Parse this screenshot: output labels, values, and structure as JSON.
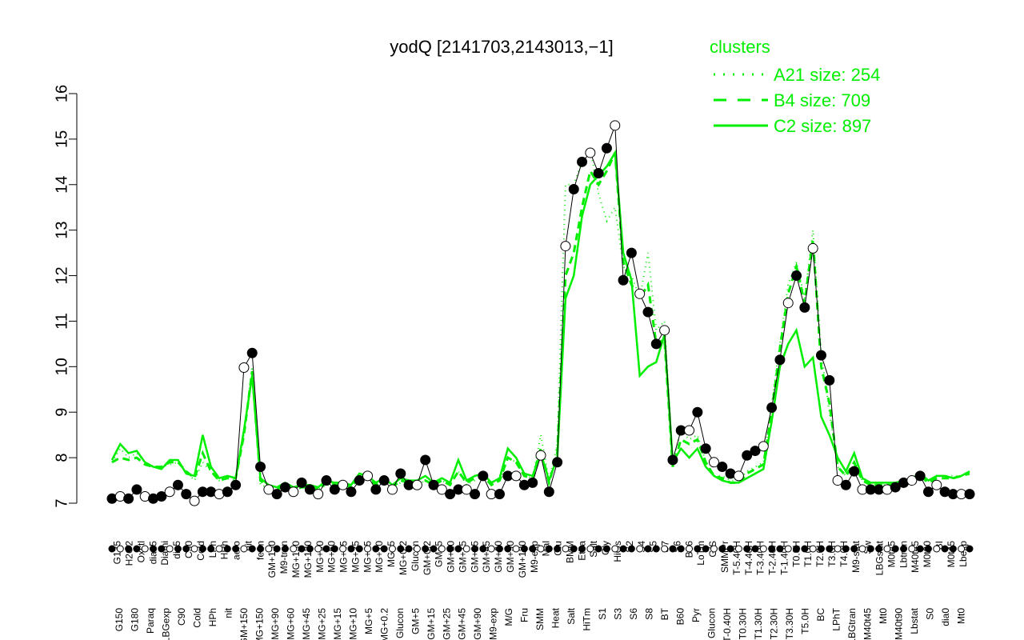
{
  "chart_data": {
    "type": "line",
    "title": "yodQ [2141703,2143013,−1]",
    "xlabel": "",
    "ylabel": "",
    "ylim": [
      7,
      16
    ],
    "yticks": [
      "7",
      "8",
      "9",
      "10",
      "11",
      "12",
      "13",
      "14",
      "15",
      "16"
    ],
    "categories": [
      "G150",
      "G135",
      "G180",
      "H2O2",
      "Paraq",
      "Oxctl",
      "LBGexp",
      "dia15",
      "Diami",
      "dia5",
      "C90",
      "C30",
      "Cold",
      "LPh",
      "HPh",
      "aero",
      "nit",
      "ferm",
      "GM+150",
      "M9-tran",
      "MG+150",
      "MG+120",
      "MG+60",
      "MG+90",
      "MG+45",
      "MG+25",
      "MG+15",
      "MG+10",
      "MG+5",
      "MG+0.2",
      "Glucon",
      "GM+0.2",
      "GM+5",
      "GM+10",
      "GM+15",
      "GM+25",
      "GM+45",
      "GM+60",
      "GM+90",
      "GM+120",
      "M9-exp",
      "M/G",
      "Mal",
      "Fru",
      "Glu",
      "SMM",
      "BMM",
      "Heat",
      "Etha",
      "Salt",
      "Gly",
      "HiTm",
      "HiOs",
      "S1",
      "S2",
      "S3",
      "S4",
      "S5",
      "S6a",
      "S7",
      "S8",
      "S6b",
      "BT",
      "B36",
      "B60",
      "LoTm",
      "Pyr",
      "G/S",
      "Glucon2",
      "SMMPr",
      "T-5.40H",
      "T-4.40H",
      "T-3.40H",
      "T-2.40H",
      "T-1.40H",
      "T-0.40H",
      "T0.0H",
      "T0.30H",
      "T1.0H",
      "T1.30H",
      "T2.0H",
      "T2.30H",
      "T3.0H",
      "T3.30H",
      "T4.0H",
      "T5.0H",
      "M9-stat",
      "BC",
      "Sw",
      "LPhT",
      "LBGstat",
      "LBGtran",
      "M0t45",
      "M40t45",
      "Lbtran",
      "Mt0",
      "M0t90",
      "M40t90",
      "Lbstat",
      "BI",
      "S0",
      "M0t45b",
      "dia0",
      "Mt0b",
      "Lbexp"
    ],
    "x_tick_labels_upper": [
      "G135",
      "H2O2",
      "Oxctl",
      "dia15",
      "Diami",
      "dia5",
      "C30",
      "Cold",
      "LPh",
      "HPh",
      "aero",
      "nit",
      "ferm",
      "GM+150",
      "M9-tran",
      "MG+150",
      "MG+120",
      "MG+90",
      "MG+60",
      "MG+45",
      "MG+25",
      "MG+15",
      "MG+10",
      "MG+5",
      "MG+0.2",
      "Glucon",
      "GM+0.2",
      "GM+5",
      "GM+10",
      "GM+15",
      "GM+25",
      "GM+45",
      "GM+60",
      "GM+90",
      "GM+120",
      "M9-exp",
      "Mal",
      "Glu",
      "BMM",
      "Etha",
      "Salt",
      "Gly",
      "HiOs",
      "S2",
      "S4",
      "S5",
      "S7",
      "S6",
      "B36",
      "LoTm",
      "G/S",
      "SMMPr",
      "T-5.40H",
      "T-4.40H",
      "T-3.40H",
      "T-2.40H",
      "T-1.40H",
      "T0.0H",
      "T1.0H",
      "T2.0H",
      "T3.0H",
      "T4.0H",
      "M9-stat",
      "Sw",
      "LBGstat",
      "M0t45",
      "Lbtran",
      "M40t45",
      "M0t90",
      "BI",
      "M0t45",
      "Lbexp"
    ],
    "x_tick_labels_lower": [
      "G150",
      "G180",
      "Paraq",
      "LBGexp",
      "C90",
      "Cold",
      "HPh",
      "nit",
      "GM+150",
      "MG+150",
      "MG+90",
      "MG+60",
      "MG+45",
      "MG+25",
      "MG+15",
      "MG+10",
      "MG+5",
      "MG+0.2",
      "Glucon",
      "GM+5",
      "GM+15",
      "GM+25",
      "GM+45",
      "GM+90",
      "M9-exp",
      "M/G",
      "Fru",
      "SMM",
      "Heat",
      "Salt",
      "HiTm",
      "S1",
      "S3",
      "S6",
      "S8",
      "BT",
      "B60",
      "Pyr",
      "Glucon",
      "T-0.40H",
      "T0.30H",
      "T1.30H",
      "T2.30H",
      "T3.30H",
      "T5.0H",
      "BC",
      "LPhT",
      "LBGtran",
      "M40t45",
      "Mt0",
      "M40t90",
      "Lbstat",
      "S0",
      "dia0",
      "Mt0"
    ],
    "points": [
      7.1,
      7.15,
      7.1,
      7.3,
      7.15,
      7.1,
      7.15,
      7.25,
      7.4,
      7.2,
      7.05,
      7.25,
      7.25,
      7.2,
      7.25,
      7.4,
      9.98,
      10.3,
      7.8,
      7.3,
      7.2,
      7.35,
      7.25,
      7.45,
      7.3,
      7.2,
      7.5,
      7.3,
      7.4,
      7.25,
      7.5,
      7.6,
      7.3,
      7.5,
      7.3,
      7.65,
      7.4,
      7.4,
      7.95,
      7.4,
      7.3,
      7.2,
      7.3,
      7.3,
      7.2,
      7.6,
      7.2,
      7.2,
      7.6,
      7.6,
      7.4,
      7.45,
      8.05,
      7.25,
      7.9,
      12.65,
      13.9,
      14.5,
      14.7,
      14.25,
      14.8,
      15.3,
      11.9,
      12.5,
      11.6,
      11.2,
      10.5,
      10.8,
      7.95,
      8.6,
      8.6,
      9.0,
      8.2,
      7.9,
      7.8,
      7.65,
      7.6,
      8.05,
      8.15,
      8.25,
      9.1,
      10.15,
      11.4,
      12.0,
      11.3,
      12.6,
      10.25,
      9.7,
      7.5,
      7.4,
      7.7,
      7.3,
      7.3,
      7.3,
      7.3,
      7.35,
      7.45,
      7.5,
      7.6,
      7.25,
      7.4,
      7.25,
      7.2,
      7.2,
      7.2
    ],
    "series": [
      {
        "name": "A21 size: 254",
        "style": "dotted",
        "values": [
          7.9,
          8.2,
          8.0,
          8.1,
          7.9,
          7.8,
          7.8,
          7.85,
          7.9,
          7.7,
          7.5,
          7.9,
          7.7,
          7.5,
          7.55,
          7.5,
          8.5,
          10.0,
          7.4,
          7.35,
          7.3,
          7.35,
          7.3,
          7.35,
          7.3,
          7.3,
          7.4,
          7.4,
          7.35,
          7.35,
          7.6,
          7.6,
          7.4,
          7.5,
          7.35,
          7.45,
          7.4,
          7.4,
          7.5,
          7.4,
          7.5,
          7.4,
          7.7,
          7.4,
          7.5,
          7.6,
          7.4,
          7.5,
          8.0,
          7.9,
          7.6,
          7.55,
          8.5,
          7.5,
          8.3,
          14.0,
          14.0,
          14.5,
          14.8,
          13.8,
          13.2,
          13.5,
          12.2,
          12.0,
          11.5,
          12.5,
          10.8,
          11.0,
          7.9,
          8.6,
          8.4,
          8.5,
          7.9,
          7.6,
          7.6,
          7.5,
          7.5,
          7.7,
          7.8,
          7.9,
          9.2,
          10.5,
          11.8,
          12.3,
          11.5,
          13.0,
          10.3,
          9.0,
          7.8,
          7.6,
          7.8,
          7.5,
          7.4,
          7.4,
          7.4,
          7.4,
          7.45,
          7.5,
          7.6,
          7.5,
          7.6,
          7.6,
          7.6,
          7.6,
          7.7
        ]
      },
      {
        "name": "B4 size: 709",
        "style": "dashed",
        "values": [
          7.9,
          8.0,
          7.95,
          8.0,
          7.85,
          7.8,
          7.8,
          7.9,
          7.9,
          7.7,
          7.55,
          8.1,
          7.7,
          7.5,
          7.55,
          7.55,
          8.5,
          9.9,
          7.5,
          7.35,
          7.3,
          7.4,
          7.3,
          7.35,
          7.35,
          7.3,
          7.45,
          7.4,
          7.4,
          7.35,
          7.6,
          7.55,
          7.4,
          7.5,
          7.35,
          7.5,
          7.45,
          7.45,
          7.5,
          7.4,
          7.5,
          7.4,
          7.7,
          7.45,
          7.55,
          7.6,
          7.4,
          7.5,
          8.0,
          7.9,
          7.6,
          7.55,
          8.2,
          7.45,
          8.1,
          12.0,
          12.5,
          13.5,
          14.3,
          14.0,
          14.3,
          14.7,
          12.3,
          11.8,
          11.5,
          11.8,
          10.5,
          10.6,
          7.8,
          8.4,
          8.3,
          8.4,
          7.9,
          7.6,
          7.55,
          7.45,
          7.45,
          7.65,
          7.75,
          7.85,
          9.0,
          10.4,
          11.6,
          12.2,
          11.4,
          12.8,
          10.0,
          9.2,
          7.8,
          7.6,
          7.9,
          7.5,
          7.4,
          7.4,
          7.4,
          7.4,
          7.45,
          7.5,
          7.6,
          7.45,
          7.55,
          7.55,
          7.55,
          7.6,
          7.65
        ]
      },
      {
        "name": "C2 size: 897",
        "style": "solid",
        "values": [
          7.95,
          8.3,
          8.1,
          8.15,
          7.9,
          7.8,
          7.75,
          7.95,
          7.95,
          7.65,
          7.6,
          8.5,
          7.8,
          7.55,
          7.6,
          7.55,
          8.6,
          9.8,
          7.55,
          7.4,
          7.35,
          7.45,
          7.35,
          7.4,
          7.4,
          7.35,
          7.5,
          7.45,
          7.45,
          7.4,
          7.65,
          7.6,
          7.45,
          7.55,
          7.4,
          7.55,
          7.5,
          7.5,
          7.6,
          7.45,
          7.55,
          7.45,
          7.95,
          7.5,
          7.6,
          7.65,
          7.45,
          7.55,
          8.2,
          8.0,
          7.65,
          7.6,
          8.1,
          7.5,
          8.0,
          11.5,
          12.0,
          13.3,
          14.0,
          14.2,
          14.4,
          14.7,
          12.5,
          11.9,
          9.8,
          10.0,
          10.1,
          10.7,
          7.9,
          8.2,
          8.0,
          8.2,
          7.8,
          7.6,
          7.5,
          7.45,
          7.45,
          7.55,
          7.65,
          7.75,
          8.8,
          10.0,
          10.5,
          10.8,
          10.0,
          10.2,
          8.9,
          8.5,
          8.0,
          7.7,
          8.1,
          7.55,
          7.45,
          7.45,
          7.45,
          7.45,
          7.5,
          7.55,
          7.65,
          7.5,
          7.6,
          7.6,
          7.55,
          7.6,
          7.7
        ]
      }
    ],
    "legend_title": "clusters",
    "legend_position": "top-right",
    "line_color": "#00ee00",
    "marker_filled_color": "#000000",
    "marker_open_color": "#ffffff",
    "grid": false
  }
}
